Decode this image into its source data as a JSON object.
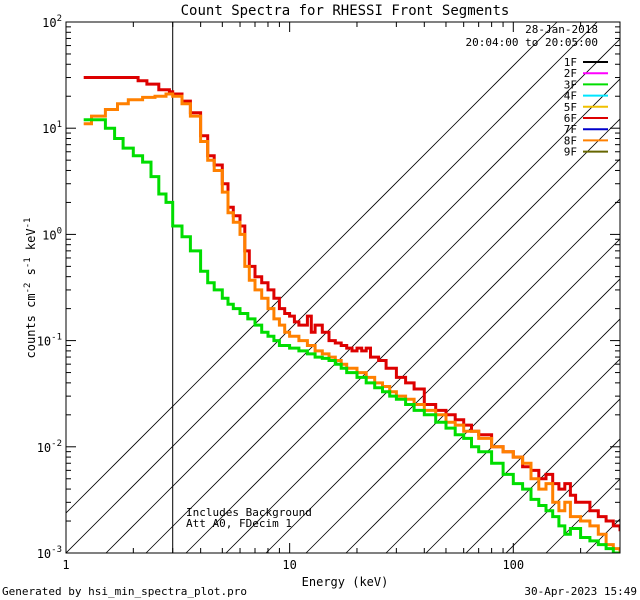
{
  "chart_data": {
    "type": "line",
    "title": "Count Spectra for RHESSI Front Segments",
    "xlabel": "Energy (keV)",
    "ylabel_parts": [
      "counts cm",
      "-2",
      " s",
      "-1",
      " keV",
      "-1"
    ],
    "xscale": "log",
    "yscale": "log",
    "xlim": [
      1.0,
      300.0
    ],
    "ylim": [
      0.001,
      100.0
    ],
    "x_ticks": [
      {
        "value": 1,
        "label": "1"
      },
      {
        "value": 10,
        "label": "10"
      },
      {
        "value": 100,
        "label": "100"
      }
    ],
    "y_ticks": [
      {
        "value": 0.001,
        "base": "10",
        "exp": "-3"
      },
      {
        "value": 0.01,
        "base": "10",
        "exp": "-2"
      },
      {
        "value": 0.1,
        "base": "10",
        "exp": "-1"
      },
      {
        "value": 1,
        "base": "10",
        "exp": "0"
      },
      {
        "value": 10,
        "base": "10",
        "exp": "1"
      },
      {
        "value": 100,
        "base": "10",
        "exp": "2"
      }
    ],
    "shaded_region": {
      "x_range": [
        1.0,
        3.0
      ],
      "pattern": "diagonal hatch"
    },
    "vertical_line_x": 3.0,
    "date": "28-Jan-2018",
    "time_range": "20:04:00 to 20:05:00",
    "legend": [
      {
        "label": "1F",
        "color": "#000000"
      },
      {
        "label": "2F",
        "color": "#ff00ff"
      },
      {
        "label": "3F",
        "color": "#00dd00"
      },
      {
        "label": "4F",
        "color": "#00e5ff"
      },
      {
        "label": "5F",
        "color": "#f0c000"
      },
      {
        "label": "6F",
        "color": "#dd0000"
      },
      {
        "label": "7F",
        "color": "#0000cc"
      },
      {
        "label": "8F",
        "color": "#ff8000"
      },
      {
        "label": "9F",
        "color": "#666600"
      }
    ],
    "series": [
      {
        "name": "6F",
        "color": "#dd0000",
        "style": "step",
        "points": [
          [
            1.2,
            30
          ],
          [
            2.0,
            30
          ],
          [
            2.1,
            28
          ],
          [
            2.3,
            26
          ],
          [
            2.6,
            23
          ],
          [
            2.9,
            22
          ],
          [
            3.0,
            21
          ],
          [
            3.3,
            18
          ],
          [
            3.6,
            14
          ],
          [
            4.0,
            8.5
          ],
          [
            4.3,
            5.5
          ],
          [
            4.6,
            4.5
          ],
          [
            5.0,
            3.0
          ],
          [
            5.3,
            1.8
          ],
          [
            5.6,
            1.5
          ],
          [
            6.0,
            1.2
          ],
          [
            6.3,
            0.7
          ],
          [
            6.6,
            0.5
          ],
          [
            7.0,
            0.4
          ],
          [
            7.5,
            0.35
          ],
          [
            8.0,
            0.3
          ],
          [
            8.5,
            0.25
          ],
          [
            9.0,
            0.2
          ],
          [
            9.5,
            0.18
          ],
          [
            10,
            0.17
          ],
          [
            10.5,
            0.15
          ],
          [
            11,
            0.14
          ],
          [
            12,
            0.17
          ],
          [
            12.5,
            0.12
          ],
          [
            13,
            0.14
          ],
          [
            14,
            0.12
          ],
          [
            15,
            0.1
          ],
          [
            16,
            0.095
          ],
          [
            17,
            0.09
          ],
          [
            18,
            0.085
          ],
          [
            19,
            0.08
          ],
          [
            20,
            0.085
          ],
          [
            21,
            0.08
          ],
          [
            22,
            0.085
          ],
          [
            23,
            0.07
          ],
          [
            25,
            0.065
          ],
          [
            27,
            0.055
          ],
          [
            30,
            0.045
          ],
          [
            33,
            0.04
          ],
          [
            36,
            0.035
          ],
          [
            40,
            0.025
          ],
          [
            45,
            0.022
          ],
          [
            50,
            0.02
          ],
          [
            55,
            0.018
          ],
          [
            60,
            0.016
          ],
          [
            65,
            0.014
          ],
          [
            70,
            0.013
          ],
          [
            80,
            0.01
          ],
          [
            90,
            0.009
          ],
          [
            100,
            0.008
          ],
          [
            110,
            0.0065
          ],
          [
            120,
            0.006
          ],
          [
            130,
            0.005
          ],
          [
            140,
            0.0055
          ],
          [
            150,
            0.0045
          ],
          [
            160,
            0.004
          ],
          [
            170,
            0.0045
          ],
          [
            180,
            0.0035
          ],
          [
            190,
            0.003
          ],
          [
            200,
            0.003
          ],
          [
            220,
            0.0025
          ],
          [
            240,
            0.0022
          ],
          [
            260,
            0.002
          ],
          [
            280,
            0.0018
          ],
          [
            300,
            0.0016
          ]
        ]
      },
      {
        "name": "8F",
        "color": "#ff8000",
        "style": "step",
        "points": [
          [
            1.2,
            11
          ],
          [
            1.3,
            13
          ],
          [
            1.5,
            15
          ],
          [
            1.7,
            17
          ],
          [
            1.9,
            18.5
          ],
          [
            2.2,
            19.5
          ],
          [
            2.5,
            20
          ],
          [
            2.8,
            21
          ],
          [
            3.0,
            20
          ],
          [
            3.3,
            17
          ],
          [
            3.6,
            13
          ],
          [
            4.0,
            7.5
          ],
          [
            4.3,
            5.0
          ],
          [
            4.6,
            4.0
          ],
          [
            5.0,
            2.5
          ],
          [
            5.3,
            1.6
          ],
          [
            5.6,
            1.3
          ],
          [
            6.0,
            1.0
          ],
          [
            6.3,
            0.5
          ],
          [
            6.6,
            0.37
          ],
          [
            7.0,
            0.3
          ],
          [
            7.5,
            0.25
          ],
          [
            8.0,
            0.2
          ],
          [
            8.5,
            0.16
          ],
          [
            9.0,
            0.14
          ],
          [
            9.5,
            0.12
          ],
          [
            10,
            0.11
          ],
          [
            11,
            0.1
          ],
          [
            12,
            0.09
          ],
          [
            13,
            0.08
          ],
          [
            14,
            0.075
          ],
          [
            15,
            0.07
          ],
          [
            16,
            0.065
          ],
          [
            17,
            0.06
          ],
          [
            18,
            0.055
          ],
          [
            20,
            0.05
          ],
          [
            22,
            0.045
          ],
          [
            24,
            0.04
          ],
          [
            26,
            0.037
          ],
          [
            28,
            0.033
          ],
          [
            30,
            0.03
          ],
          [
            33,
            0.028
          ],
          [
            36,
            0.025
          ],
          [
            40,
            0.022
          ],
          [
            45,
            0.02
          ],
          [
            50,
            0.017
          ],
          [
            55,
            0.016
          ],
          [
            60,
            0.014
          ],
          [
            70,
            0.012
          ],
          [
            80,
            0.01
          ],
          [
            90,
            0.009
          ],
          [
            100,
            0.008
          ],
          [
            110,
            0.007
          ],
          [
            120,
            0.005
          ],
          [
            130,
            0.004
          ],
          [
            140,
            0.0045
          ],
          [
            150,
            0.003
          ],
          [
            160,
            0.0025
          ],
          [
            170,
            0.003
          ],
          [
            180,
            0.0022
          ],
          [
            200,
            0.002
          ],
          [
            220,
            0.0018
          ],
          [
            240,
            0.0015
          ],
          [
            260,
            0.0012
          ],
          [
            280,
            0.0011
          ],
          [
            300,
            0.001
          ]
        ]
      },
      {
        "name": "3F",
        "color": "#00dd00",
        "style": "step",
        "points": [
          [
            1.2,
            12
          ],
          [
            1.45,
            12
          ],
          [
            1.5,
            10
          ],
          [
            1.65,
            8
          ],
          [
            1.8,
            6.5
          ],
          [
            2.0,
            5.5
          ],
          [
            2.2,
            4.8
          ],
          [
            2.4,
            3.5
          ],
          [
            2.6,
            2.4
          ],
          [
            2.8,
            2.0
          ],
          [
            3.0,
            1.2
          ],
          [
            3.3,
            0.95
          ],
          [
            3.6,
            0.7
          ],
          [
            4.0,
            0.45
          ],
          [
            4.3,
            0.35
          ],
          [
            4.6,
            0.3
          ],
          [
            5.0,
            0.25
          ],
          [
            5.3,
            0.22
          ],
          [
            5.6,
            0.2
          ],
          [
            6.0,
            0.18
          ],
          [
            6.5,
            0.16
          ],
          [
            7.0,
            0.14
          ],
          [
            7.5,
            0.12
          ],
          [
            8.0,
            0.11
          ],
          [
            8.5,
            0.1
          ],
          [
            9.0,
            0.09
          ],
          [
            10,
            0.085
          ],
          [
            11,
            0.08
          ],
          [
            12,
            0.075
          ],
          [
            13,
            0.07
          ],
          [
            14,
            0.068
          ],
          [
            15,
            0.065
          ],
          [
            16,
            0.06
          ],
          [
            17,
            0.055
          ],
          [
            18,
            0.05
          ],
          [
            20,
            0.045
          ],
          [
            22,
            0.04
          ],
          [
            24,
            0.036
          ],
          [
            26,
            0.033
          ],
          [
            28,
            0.03
          ],
          [
            30,
            0.028
          ],
          [
            33,
            0.025
          ],
          [
            36,
            0.022
          ],
          [
            40,
            0.02
          ],
          [
            45,
            0.017
          ],
          [
            50,
            0.015
          ],
          [
            55,
            0.013
          ],
          [
            60,
            0.012
          ],
          [
            65,
            0.01
          ],
          [
            70,
            0.009
          ],
          [
            80,
            0.007
          ],
          [
            90,
            0.0055
          ],
          [
            100,
            0.0045
          ],
          [
            110,
            0.004
          ],
          [
            120,
            0.0032
          ],
          [
            130,
            0.0028
          ],
          [
            140,
            0.0025
          ],
          [
            150,
            0.0022
          ],
          [
            160,
            0.0018
          ],
          [
            170,
            0.0015
          ],
          [
            180,
            0.0017
          ],
          [
            200,
            0.0014
          ],
          [
            220,
            0.0013
          ],
          [
            240,
            0.0012
          ],
          [
            260,
            0.0011
          ],
          [
            280,
            0.001
          ],
          [
            300,
            0.001
          ]
        ]
      }
    ],
    "annotations": [
      "Includes Background",
      "Att A0, FDecim 1"
    ]
  },
  "footer": {
    "left": "Generated by hsi_min_spectra_plot.pro",
    "right": "30-Apr-2023 15:49"
  }
}
